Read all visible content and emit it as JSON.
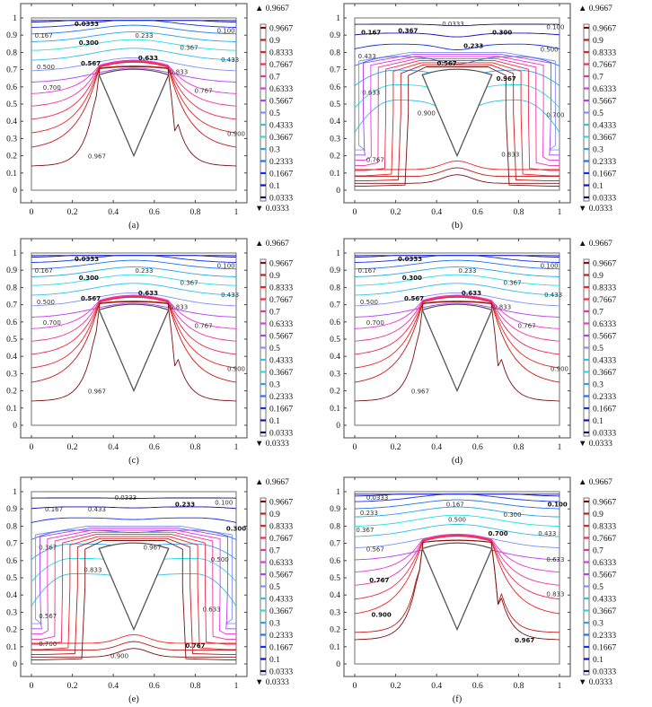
{
  "chart_data": [
    {
      "id": "a",
      "type": "contour",
      "caption": "(a)",
      "pattern": "plume",
      "xlim": [
        0,
        1
      ],
      "ylim": [
        0,
        1
      ],
      "xticks": [
        "0",
        "0.2",
        "0.4",
        "0.6",
        "0.8",
        "1"
      ],
      "yticks": [
        "0",
        "0.1",
        "0.2",
        "0.3",
        "0.4",
        "0.5",
        "0.6",
        "0.7",
        "0.8",
        "0.9",
        "1"
      ],
      "obstacle": {
        "apex": [
          0.5,
          0.2
        ],
        "left": [
          0.33,
          0.67
        ],
        "right": [
          0.67,
          0.67
        ],
        "top_y": 0.7
      },
      "contour_labels": [
        {
          "text": "0.0333",
          "x": 0.27,
          "y": 0.97,
          "bold": true
        },
        {
          "text": "0.100",
          "x": 0.95,
          "y": 0.93
        },
        {
          "text": "0.167",
          "x": 0.06,
          "y": 0.9
        },
        {
          "text": "0.233",
          "x": 0.55,
          "y": 0.9
        },
        {
          "text": "0.300",
          "x": 0.28,
          "y": 0.86,
          "bold": true
        },
        {
          "text": "0.367",
          "x": 0.77,
          "y": 0.83
        },
        {
          "text": "0.433",
          "x": 0.97,
          "y": 0.76
        },
        {
          "text": "0.500",
          "x": 0.07,
          "y": 0.72
        },
        {
          "text": "0.567",
          "x": 0.29,
          "y": 0.74,
          "bold": true
        },
        {
          "text": "0.633",
          "x": 0.57,
          "y": 0.77,
          "bold": true
        },
        {
          "text": "0.833",
          "x": 0.72,
          "y": 0.69
        },
        {
          "text": "0.700",
          "x": 0.1,
          "y": 0.6
        },
        {
          "text": "0.767",
          "x": 0.84,
          "y": 0.58
        },
        {
          "text": "0.900",
          "x": 1.0,
          "y": 0.33
        },
        {
          "text": "0.967",
          "x": 0.32,
          "y": 0.2
        }
      ]
    },
    {
      "id": "b",
      "type": "contour",
      "caption": "(b)",
      "pattern": "wrap",
      "xlim": [
        0,
        1
      ],
      "ylim": [
        0,
        1
      ],
      "xticks": [
        "0",
        "0.2",
        "0.4",
        "0.6",
        "0.8",
        "1"
      ],
      "yticks": [
        "0",
        "0.1",
        "0.2",
        "0.3",
        "0.4",
        "0.5",
        "0.6",
        "0.7",
        "0.8",
        "0.9",
        "1"
      ],
      "obstacle": {
        "apex": [
          0.5,
          0.2
        ],
        "left": [
          0.33,
          0.67
        ],
        "right": [
          0.67,
          0.67
        ],
        "top_y": 0.7
      },
      "contour_labels": [
        {
          "text": "0.0333",
          "x": 0.48,
          "y": 0.97
        },
        {
          "text": "0.100",
          "x": 0.98,
          "y": 0.95
        },
        {
          "text": "0.167",
          "x": 0.08,
          "y": 0.92,
          "bold": true
        },
        {
          "text": "0.367",
          "x": 0.26,
          "y": 0.93,
          "bold": true
        },
        {
          "text": "0.300",
          "x": 0.72,
          "y": 0.92,
          "bold": true
        },
        {
          "text": "0.233",
          "x": 0.58,
          "y": 0.84,
          "bold": true
        },
        {
          "text": "0.433",
          "x": 0.06,
          "y": 0.78
        },
        {
          "text": "0.500",
          "x": 0.95,
          "y": 0.82
        },
        {
          "text": "0.567",
          "x": 0.45,
          "y": 0.74,
          "bold": true
        },
        {
          "text": "0.967",
          "x": 0.74,
          "y": 0.65,
          "bold": true
        },
        {
          "text": "0.633",
          "x": 0.08,
          "y": 0.57
        },
        {
          "text": "0.900",
          "x": 0.35,
          "y": 0.45
        },
        {
          "text": "0.700",
          "x": 0.98,
          "y": 0.44
        },
        {
          "text": "0.767",
          "x": 0.1,
          "y": 0.18
        },
        {
          "text": "0.833",
          "x": 0.76,
          "y": 0.21
        }
      ]
    },
    {
      "id": "c",
      "type": "contour",
      "caption": "(c)",
      "pattern": "plume",
      "xlim": [
        0,
        1
      ],
      "ylim": [
        0,
        1
      ],
      "xticks": [
        "0",
        "0.2",
        "0.4",
        "0.6",
        "0.8",
        "1"
      ],
      "yticks": [
        "0",
        "0.1",
        "0.2",
        "0.3",
        "0.4",
        "0.5",
        "0.6",
        "0.7",
        "0.8",
        "0.9",
        "1"
      ],
      "obstacle": {
        "apex": [
          0.5,
          0.2
        ],
        "left": [
          0.33,
          0.67
        ],
        "right": [
          0.67,
          0.67
        ],
        "top_y": 0.7
      },
      "contour_labels": [
        {
          "text": "0.0333",
          "x": 0.27,
          "y": 0.97,
          "bold": true
        },
        {
          "text": "0.100",
          "x": 0.95,
          "y": 0.93
        },
        {
          "text": "0.167",
          "x": 0.06,
          "y": 0.9
        },
        {
          "text": "0.233",
          "x": 0.55,
          "y": 0.9
        },
        {
          "text": "0.300",
          "x": 0.28,
          "y": 0.86,
          "bold": true
        },
        {
          "text": "0.367",
          "x": 0.77,
          "y": 0.83
        },
        {
          "text": "0.433",
          "x": 0.97,
          "y": 0.76
        },
        {
          "text": "0.500",
          "x": 0.07,
          "y": 0.72
        },
        {
          "text": "0.567",
          "x": 0.29,
          "y": 0.74,
          "bold": true
        },
        {
          "text": "0.633",
          "x": 0.57,
          "y": 0.77,
          "bold": true
        },
        {
          "text": "0.833",
          "x": 0.72,
          "y": 0.69
        },
        {
          "text": "0.700",
          "x": 0.1,
          "y": 0.6
        },
        {
          "text": "0.767",
          "x": 0.84,
          "y": 0.58
        },
        {
          "text": "0.900",
          "x": 1.0,
          "y": 0.33
        },
        {
          "text": "0.967",
          "x": 0.32,
          "y": 0.2
        }
      ]
    },
    {
      "id": "d",
      "type": "contour",
      "caption": "(d)",
      "pattern": "plume",
      "xlim": [
        0,
        1
      ],
      "ylim": [
        0,
        1
      ],
      "xticks": [
        "0",
        "0.2",
        "0.4",
        "0.6",
        "0.8",
        "1"
      ],
      "yticks": [
        "0",
        "0.1",
        "0.2",
        "0.3",
        "0.4",
        "0.5",
        "0.6",
        "0.7",
        "0.8",
        "0.9",
        "1"
      ],
      "obstacle": {
        "apex": [
          0.5,
          0.2
        ],
        "left": [
          0.33,
          0.67
        ],
        "right": [
          0.67,
          0.67
        ],
        "top_y": 0.7
      },
      "contour_labels": [
        {
          "text": "0.0333",
          "x": 0.27,
          "y": 0.97,
          "bold": true
        },
        {
          "text": "0.100",
          "x": 0.95,
          "y": 0.93
        },
        {
          "text": "0.167",
          "x": 0.06,
          "y": 0.9
        },
        {
          "text": "0.233",
          "x": 0.55,
          "y": 0.9
        },
        {
          "text": "0.300",
          "x": 0.28,
          "y": 0.86,
          "bold": true
        },
        {
          "text": "0.367",
          "x": 0.77,
          "y": 0.83
        },
        {
          "text": "0.433",
          "x": 0.97,
          "y": 0.76
        },
        {
          "text": "0.500",
          "x": 0.07,
          "y": 0.72
        },
        {
          "text": "0.567",
          "x": 0.29,
          "y": 0.74,
          "bold": true
        },
        {
          "text": "0.633",
          "x": 0.57,
          "y": 0.77,
          "bold": true
        },
        {
          "text": "0.833",
          "x": 0.72,
          "y": 0.69
        },
        {
          "text": "0.700",
          "x": 0.1,
          "y": 0.6
        },
        {
          "text": "0.767",
          "x": 0.84,
          "y": 0.58
        },
        {
          "text": "0.900",
          "x": 1.0,
          "y": 0.33
        },
        {
          "text": "0.967",
          "x": 0.32,
          "y": 0.2
        }
      ]
    },
    {
      "id": "e",
      "type": "contour",
      "caption": "(e)",
      "pattern": "wrap",
      "xlim": [
        0,
        1
      ],
      "ylim": [
        0,
        1
      ],
      "xticks": [
        "0",
        "0.2",
        "0.4",
        "0.6",
        "0.8",
        "1"
      ],
      "yticks": [
        "0",
        "0.1",
        "0.2",
        "0.3",
        "0.4",
        "0.5",
        "0.6",
        "0.7",
        "0.8",
        "0.9",
        "1"
      ],
      "obstacle": {
        "apex": [
          0.5,
          0.2
        ],
        "left": [
          0.33,
          0.67
        ],
        "right": [
          0.67,
          0.67
        ],
        "top_y": 0.7
      },
      "contour_labels": [
        {
          "text": "0.0333",
          "x": 0.46,
          "y": 0.97
        },
        {
          "text": "0.100",
          "x": 0.94,
          "y": 0.94
        },
        {
          "text": "0.233",
          "x": 0.75,
          "y": 0.93,
          "bold": true
        },
        {
          "text": "0.167",
          "x": 0.11,
          "y": 0.9
        },
        {
          "text": "0.433",
          "x": 0.32,
          "y": 0.9
        },
        {
          "text": "0.300",
          "x": 1.0,
          "y": 0.79,
          "bold": true
        },
        {
          "text": "0.367",
          "x": 0.08,
          "y": 0.68
        },
        {
          "text": "0.967",
          "x": 0.59,
          "y": 0.68
        },
        {
          "text": "0.500",
          "x": 0.92,
          "y": 0.61
        },
        {
          "text": "0.833",
          "x": 0.3,
          "y": 0.55
        },
        {
          "text": "0.633",
          "x": 0.88,
          "y": 0.32
        },
        {
          "text": "0.567",
          "x": 0.08,
          "y": 0.28
        },
        {
          "text": "0.700",
          "x": 0.08,
          "y": 0.12
        },
        {
          "text": "0.767",
          "x": 0.8,
          "y": 0.11,
          "bold": true
        },
        {
          "text": "0.900",
          "x": 0.43,
          "y": 0.05
        }
      ]
    },
    {
      "id": "f",
      "type": "contour",
      "caption": "(f)",
      "pattern": "plume",
      "xlim": [
        0,
        1
      ],
      "ylim": [
        0,
        1
      ],
      "xticks": [
        "0",
        "0.2",
        "0.4",
        "0.6",
        "0.8",
        "1"
      ],
      "yticks": [
        "0",
        "0.1",
        "0.2",
        "0.3",
        "0.4",
        "0.5",
        "0.6",
        "0.7",
        "0.8",
        "0.9",
        "1"
      ],
      "obstacle": {
        "apex": [
          0.5,
          0.2
        ],
        "left": [
          0.33,
          0.67
        ],
        "right": [
          0.67,
          0.67
        ],
        "top_y": 0.7
      },
      "contour_labels": [
        {
          "text": "0.0333",
          "x": 0.11,
          "y": 0.97
        },
        {
          "text": "0.167",
          "x": 0.49,
          "y": 0.93
        },
        {
          "text": "0.100",
          "x": 0.99,
          "y": 0.93,
          "bold": true
        },
        {
          "text": "0.233",
          "x": 0.07,
          "y": 0.88
        },
        {
          "text": "0.300",
          "x": 0.77,
          "y": 0.87
        },
        {
          "text": "0.500",
          "x": 0.5,
          "y": 0.84
        },
        {
          "text": "0.367",
          "x": 0.05,
          "y": 0.78
        },
        {
          "text": "0.700",
          "x": 0.7,
          "y": 0.76,
          "bold": true
        },
        {
          "text": "0.433",
          "x": 0.94,
          "y": 0.76
        },
        {
          "text": "0.567",
          "x": 0.1,
          "y": 0.67
        },
        {
          "text": "0.633",
          "x": 0.98,
          "y": 0.61
        },
        {
          "text": "0.767",
          "x": 0.12,
          "y": 0.49,
          "bold": true
        },
        {
          "text": "0.833",
          "x": 0.98,
          "y": 0.41
        },
        {
          "text": "0.900",
          "x": 0.13,
          "y": 0.29,
          "bold": true
        },
        {
          "text": "0.967",
          "x": 0.83,
          "y": 0.14,
          "bold": true
        }
      ]
    }
  ],
  "legend": {
    "max_label": "▲ 0.9667",
    "min_label": "▼ 0.0333",
    "levels": [
      {
        "label": "0.9667",
        "color": "#7a1010"
      },
      {
        "label": "0.9",
        "color": "#c81818"
      },
      {
        "label": "0.8333",
        "color": "#f02020"
      },
      {
        "label": "0.7667",
        "color": "#f02850"
      },
      {
        "label": "0.7",
        "color": "#f030a0"
      },
      {
        "label": "0.6333",
        "color": "#f030e0"
      },
      {
        "label": "0.5667",
        "color": "#b040f0"
      },
      {
        "label": "0.5",
        "color": "#8090f0"
      },
      {
        "label": "0.4333",
        "color": "#30c0e8"
      },
      {
        "label": "0.3667",
        "color": "#20e0e0"
      },
      {
        "label": "0.3",
        "color": "#20a8e8"
      },
      {
        "label": "0.2333",
        "color": "#2070f0"
      },
      {
        "label": "0.1667",
        "color": "#1030f0"
      },
      {
        "label": "0.1",
        "color": "#1010c0"
      },
      {
        "label": "0.0333",
        "color": "#101060"
      }
    ]
  }
}
